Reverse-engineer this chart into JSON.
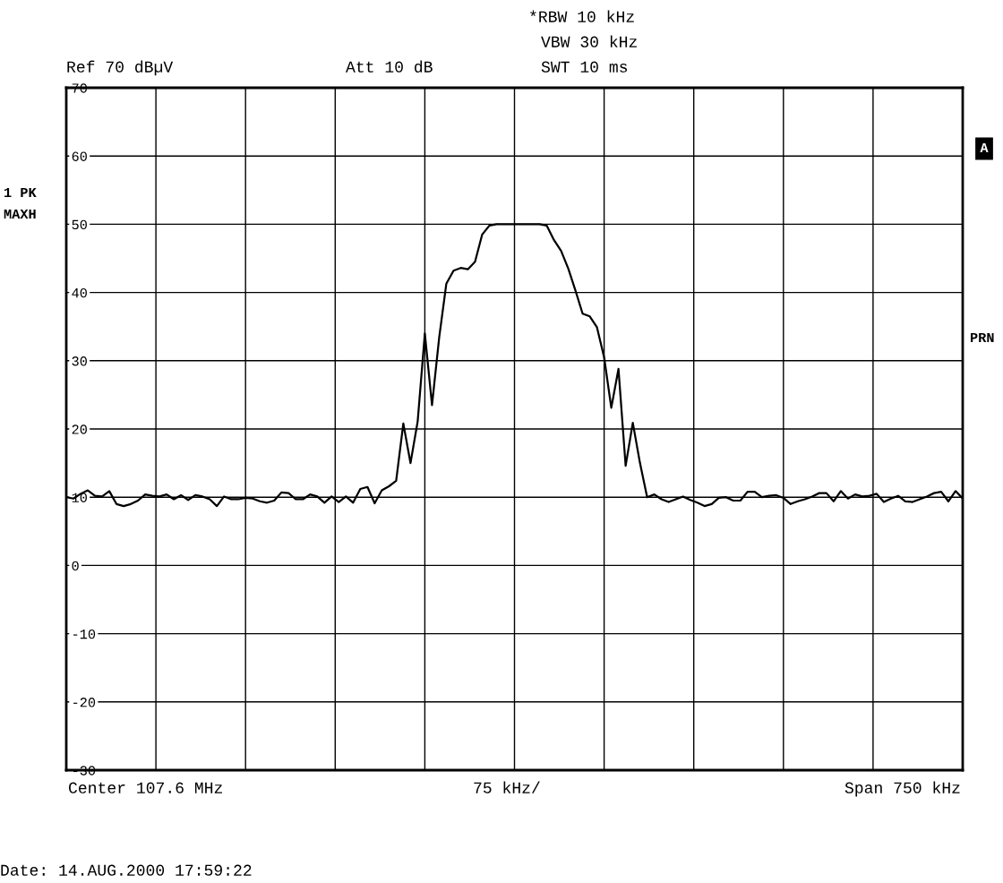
{
  "chart_data": {
    "type": "line",
    "annotations": [
      "*RBW 10 kHz",
      "VBW 30 kHz",
      "SWT 10 ms",
      "Ref 70 dBµV",
      "Att 10 dB",
      "1 PK",
      "MAXH",
      "A",
      "PRN",
      "Center 107.6 MHz",
      "75 kHz/",
      "Span 750 kHz",
      "Date: 14.AUG.2000 17:59:22"
    ],
    "categories": [
      null,
      null,
      null,
      null,
      null,
      null,
      null,
      null,
      null,
      null,
      null,
      null,
      null,
      null,
      null,
      null,
      null,
      null,
      null,
      null,
      null,
      null,
      null,
      null,
      null,
      null,
      null,
      null,
      null,
      null,
      null,
      null,
      null,
      null,
      null,
      null,
      null,
      null,
      null,
      null,
      null,
      null,
      null,
      null,
      null,
      null,
      null,
      null,
      null,
      null,
      null,
      null,
      null,
      null,
      null,
      null,
      null,
      null,
      null,
      null,
      null,
      null,
      null,
      null,
      null,
      null,
      null,
      null,
      null,
      null,
      null,
      null,
      null,
      null,
      null,
      null,
      null,
      null,
      null,
      null,
      null,
      null,
      null,
      null,
      null,
      null,
      null,
      null,
      null,
      null,
      null,
      null,
      null,
      null,
      null,
      null,
      null,
      null,
      null,
      null,
      null,
      null,
      null,
      null,
      null,
      null,
      null,
      null,
      null,
      null,
      null,
      null,
      null,
      null,
      null,
      null,
      null,
      null,
      null,
      null,
      null,
      null,
      null,
      null,
      null,
      null
    ],
    "series": [
      {
        "color": "#000000",
        "values": [
          10.0,
          9.8,
          10.5,
          11.0,
          10.2,
          10.1,
          10.9,
          9.0,
          8.7,
          9.0,
          9.5,
          10.4,
          10.2,
          10.1,
          10.4,
          9.7,
          10.3,
          9.6,
          10.3,
          10.1,
          9.7,
          8.7,
          10.1,
          9.7,
          9.7,
          9.9,
          9.8,
          9.4,
          9.2,
          9.5,
          10.7,
          10.6,
          9.7,
          9.7,
          10.4,
          10.1,
          9.2,
          10.1,
          9.3,
          10.1,
          9.2,
          11.2,
          11.5,
          9.1,
          11.0,
          11.6,
          12.4,
          20.8,
          15.0,
          21.1,
          34.0,
          23.5,
          33.4,
          41.3,
          43.2,
          43.6,
          43.4,
          44.5,
          48.5,
          49.8,
          50.0,
          50.0,
          50.0,
          50.0,
          50.0,
          50.0,
          50.0,
          49.8,
          47.7,
          46.1,
          43.5,
          40.3,
          36.9,
          36.5,
          34.9,
          30.5,
          23.1,
          28.8,
          14.6,
          20.9,
          15.0,
          10.0,
          10.4,
          9.7,
          9.3,
          9.7,
          10.1,
          9.6,
          9.2,
          8.7,
          9.0,
          9.9,
          10.0,
          9.5,
          9.5,
          10.8,
          10.8,
          10.0,
          10.2,
          10.3,
          9.9,
          9.0,
          9.4,
          9.7,
          10.1,
          10.6,
          10.6,
          9.4,
          10.9,
          9.8,
          10.4,
          10.1,
          10.2,
          10.5,
          9.3,
          9.8,
          10.2,
          9.4,
          9.3,
          9.7,
          10.1,
          10.6,
          10.8,
          9.4,
          10.9,
          9.8
        ]
      }
    ],
    "ylim": [
      -30,
      70
    ],
    "yticks": [
      -30,
      -20,
      -10,
      0,
      10,
      20,
      30,
      40,
      50,
      60,
      70
    ],
    "tick_labels": "y",
    "grid": true,
    "marker": "none",
    "line_style": "solid"
  }
}
